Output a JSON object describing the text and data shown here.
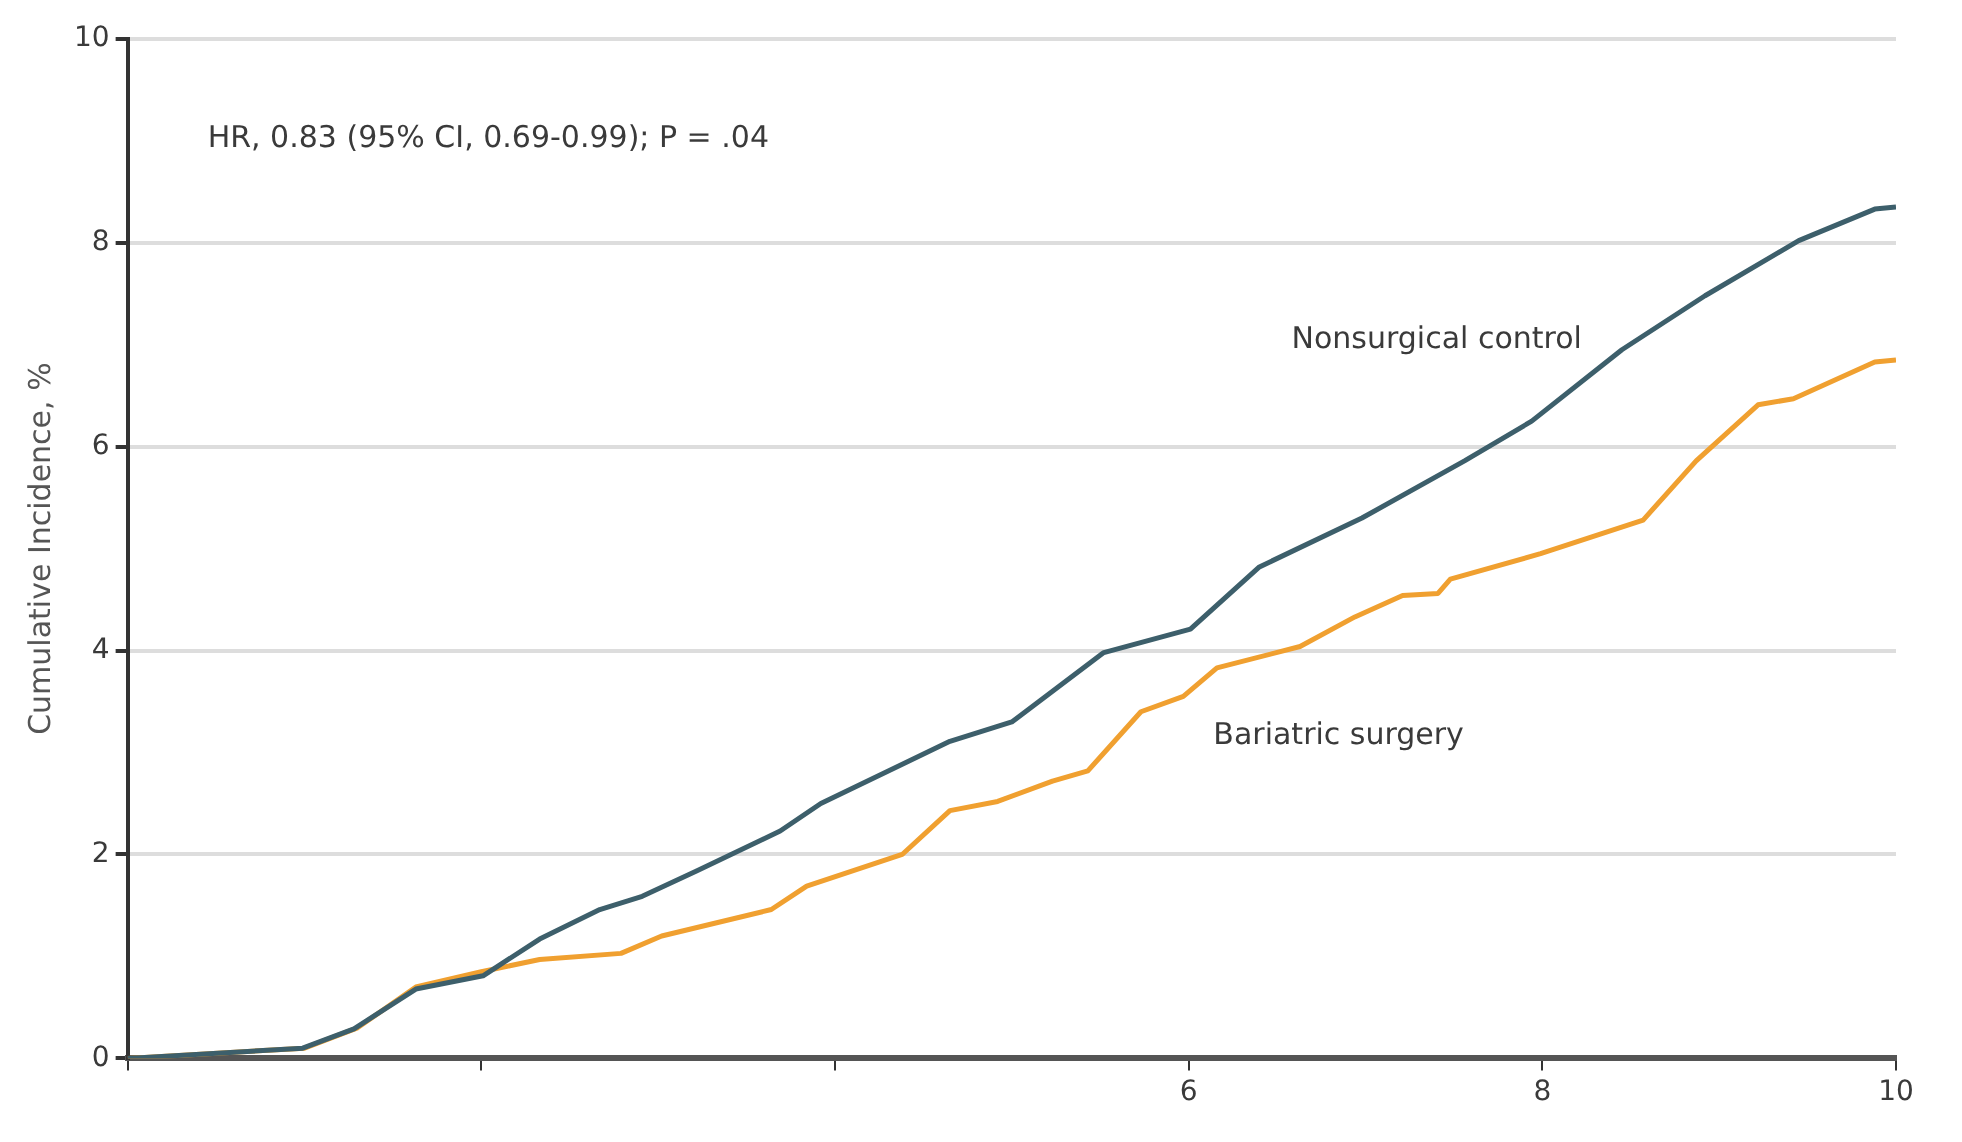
{
  "chart_data": {
    "type": "line",
    "ylabel": "Cumulative Incidence, %",
    "xlim": [
      0,
      10
    ],
    "ylim": [
      0,
      10
    ],
    "xticks": [
      {
        "value": 0,
        "label": null
      },
      {
        "value": 2,
        "label": null
      },
      {
        "value": 4,
        "label": null
      },
      6,
      8,
      10
    ],
    "yticks": [
      0,
      2,
      4,
      6,
      8,
      10
    ],
    "grid": "y",
    "legend": false,
    "marker": "none",
    "line_style": "solid",
    "annotations": [
      "HR, 0.83 (95% CI, 0.69-0.99); P = .04"
    ],
    "series": [
      {
        "name": "Nonsurgical control",
        "color": "#3d5f6b",
        "x": [
          0,
          0.99,
          1.28,
          1.63,
          2.01,
          2.33,
          2.67,
          2.91,
          3.22,
          3.69,
          3.92,
          4.65,
          5.0,
          5.52,
          6.01,
          6.4,
          6.98,
          7.56,
          7.94,
          8.45,
          8.92,
          9.45,
          9.88,
          10
        ],
        "values": [
          0,
          0.1,
          0.29,
          0.68,
          0.81,
          1.17,
          1.46,
          1.59,
          1.84,
          2.23,
          2.5,
          3.11,
          3.3,
          3.98,
          4.21,
          4.82,
          5.3,
          5.86,
          6.25,
          6.95,
          7.48,
          8.02,
          8.33,
          8.35
        ]
      },
      {
        "name": "Bariatric surgery",
        "color": "#f0a030",
        "x": [
          0,
          1.0,
          1.3,
          1.63,
          2.0,
          2.33,
          2.79,
          3.02,
          3.64,
          3.84,
          4.38,
          4.65,
          4.92,
          5.23,
          5.43,
          5.73,
          5.97,
          6.16,
          6.63,
          6.94,
          7.21,
          7.41,
          7.48,
          7.99,
          8.57,
          8.87,
          9.22,
          9.42,
          9.88,
          10
        ],
        "values": [
          0,
          0.1,
          0.3,
          0.7,
          0.85,
          0.97,
          1.03,
          1.2,
          1.46,
          1.69,
          2.0,
          2.43,
          2.52,
          2.72,
          2.82,
          3.4,
          3.55,
          3.83,
          4.04,
          4.33,
          4.54,
          4.56,
          4.7,
          4.95,
          5.28,
          5.86,
          6.41,
          6.47,
          6.83,
          6.85
        ]
      }
    ]
  }
}
